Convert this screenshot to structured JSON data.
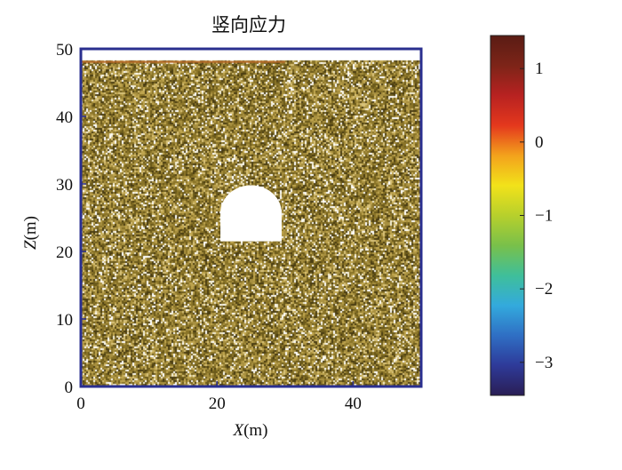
{
  "chart_data": {
    "type": "heatmap",
    "title": "竖向应力",
    "xlabel": {
      "var": "X",
      "unit": "(m)"
    },
    "ylabel": {
      "var": "Z",
      "unit": "(m)"
    },
    "xlim": [
      0,
      50
    ],
    "ylim": [
      0,
      50
    ],
    "xticks": [
      0,
      20,
      40
    ],
    "yticks": [
      0,
      10,
      20,
      30,
      40,
      50
    ],
    "tunnel_opening": {
      "x_left": 20.5,
      "x_right": 29.5,
      "z_bottom": 21.5,
      "z_wall_top": 25.7,
      "z_crown": 29.8
    },
    "model_top_z": 48.2,
    "field_colors": [
      "#4a3d12",
      "#6b5a1b",
      "#8a7428",
      "#a89040",
      "#c0a64f",
      "#d8c27a",
      "#f4eed5",
      "#ffffff"
    ],
    "colorbar": {
      "min": -3.45,
      "max": 1.45,
      "ticks": [
        1,
        0,
        -1,
        -2,
        -3
      ],
      "tick_labels": [
        "1",
        "0",
        "−1",
        "−2",
        "−3"
      ],
      "colors": [
        "#2a1e55",
        "#2e3a99",
        "#2f6fc4",
        "#33aadd",
        "#3fbf9a",
        "#79c04a",
        "#b7d02c",
        "#f2e21a",
        "#f3a21c",
        "#e4381d",
        "#b82221",
        "#7d2418",
        "#5a1c14"
      ]
    }
  }
}
